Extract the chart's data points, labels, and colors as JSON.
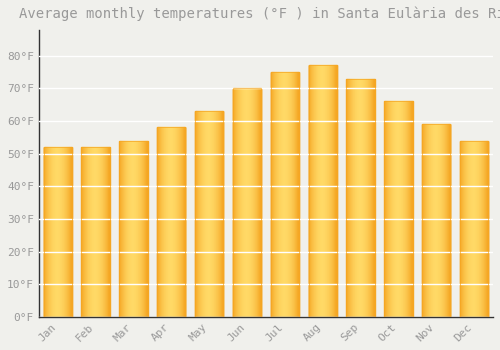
{
  "title": "Average monthly temperatures (°F ) in Santa Eulària des Riu",
  "months": [
    "Jan",
    "Feb",
    "Mar",
    "Apr",
    "May",
    "Jun",
    "Jul",
    "Aug",
    "Sep",
    "Oct",
    "Nov",
    "Dec"
  ],
  "values": [
    52,
    52,
    54,
    58,
    63,
    70,
    75,
    77,
    73,
    66,
    59,
    54
  ],
  "bar_color_center": "#FFD966",
  "bar_color_edge": "#F5A623",
  "background_color": "#F0F0EC",
  "grid_color": "#FFFFFF",
  "text_color": "#999999",
  "spine_color": "#333333",
  "ylim": [
    0,
    88
  ],
  "yticks": [
    0,
    10,
    20,
    30,
    40,
    50,
    60,
    70,
    80
  ],
  "ytick_labels": [
    "0°F",
    "10°F",
    "20°F",
    "30°F",
    "40°F",
    "50°F",
    "60°F",
    "70°F",
    "80°F"
  ],
  "title_fontsize": 10,
  "tick_fontsize": 8,
  "font_family": "monospace",
  "bar_width": 0.75
}
